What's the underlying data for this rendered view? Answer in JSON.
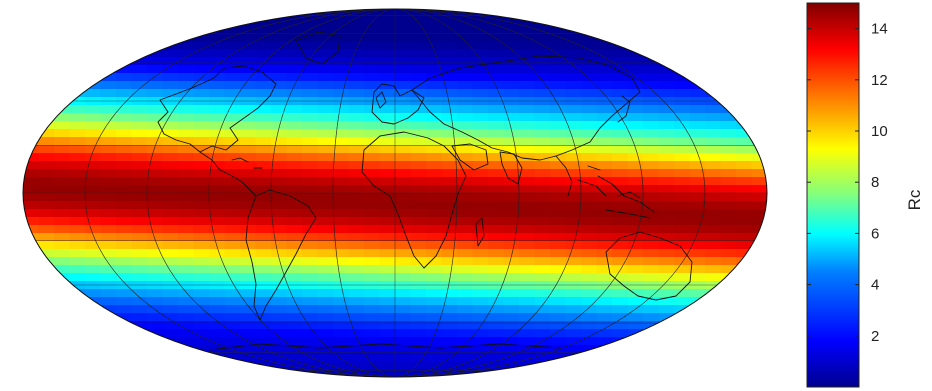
{
  "colorbar": {
    "label": "Rc",
    "ticks": [
      "2",
      "4",
      "6",
      "8",
      "10",
      "12",
      "14"
    ],
    "range": [
      0,
      15
    ],
    "colormap": "jet"
  },
  "map": {
    "projection": "Mollweide (Hammer-like equal-area, global)",
    "field": "Rc",
    "maximum_band": "tropics, slightly tilted toward the east",
    "minimum_regions": [
      "high northern latitudes",
      "high southern latitudes"
    ],
    "coastlines": true,
    "graticule": true
  },
  "colors": {
    "jet": [
      "#00008f",
      "#0000ff",
      "#0080ff",
      "#00ffff",
      "#80ff80",
      "#ffff00",
      "#ff8000",
      "#ff0000",
      "#800000"
    ],
    "coastline": "#111111",
    "graticule": "#222222"
  }
}
